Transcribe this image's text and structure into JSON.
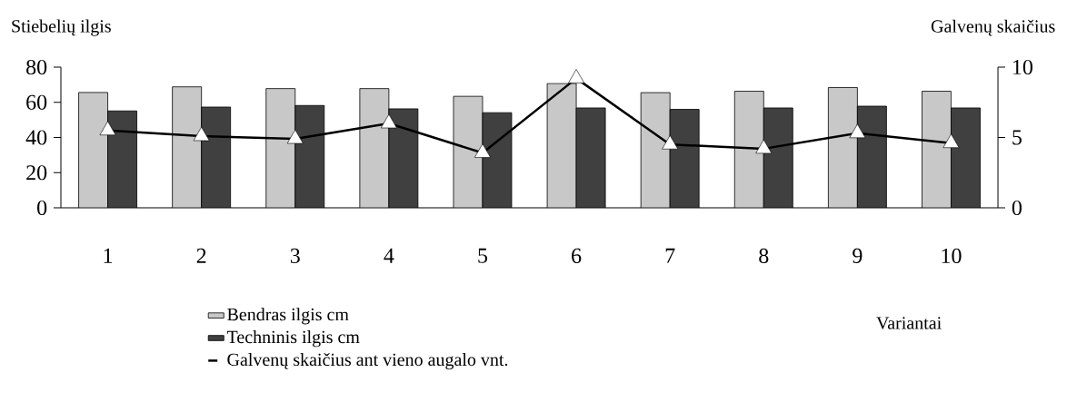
{
  "chart_data": {
    "type": "bar",
    "xlabel": "Variantai",
    "ylabel": "Stiebelių ilgis",
    "y2label": "Galvenų skaičius",
    "categories": [
      "1",
      "2",
      "3",
      "4",
      "5",
      "6",
      "7",
      "8",
      "9",
      "10"
    ],
    "series": [
      {
        "name": "Bendras ilgis cm",
        "color": "#c8c8c8",
        "values": [
          65.6,
          68.8,
          67.8,
          67.8,
          63.4,
          70.7,
          65.5,
          66.3,
          68.4,
          66.3
        ]
      },
      {
        "name": "Techninis ilgis cm",
        "color": "#404040",
        "values": [
          55.1,
          57.3,
          58.3,
          56.3,
          54.1,
          56.8,
          56,
          56.8,
          57.8,
          56.8
        ]
      },
      {
        "name": "Galvenų skaičius ant vieno augalo vnt.",
        "type": "line",
        "axis": "y2",
        "color": "#000000",
        "marker": "triangle",
        "values": [
          5.5,
          5.1,
          4.9,
          6.0,
          3.9,
          9.2,
          4.5,
          4.2,
          5.3,
          4.6
        ]
      }
    ],
    "ylim": [
      0,
      80
    ],
    "yticks": [
      0,
      20,
      40,
      60,
      80
    ],
    "y2lim": [
      0,
      10
    ],
    "y2ticks": [
      0,
      5,
      10
    ],
    "legend": "bottom left"
  }
}
